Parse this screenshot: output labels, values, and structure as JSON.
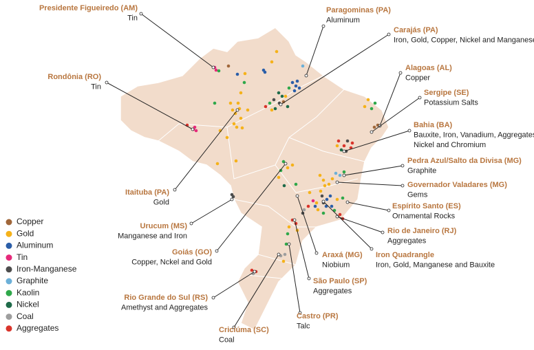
{
  "callouts": [
    {
      "name": "Presidente Figueiredo (AM)",
      "lines": [
        "Tin"
      ]
    },
    {
      "name": "Paragominas (PA)",
      "lines": [
        "Aluminum"
      ]
    },
    {
      "name": "Carajás (PA)",
      "lines": [
        "Iron, Gold, Copper, Nickel and Manganese"
      ]
    },
    {
      "name": "Rondônia (RO)",
      "lines": [
        "Tin"
      ]
    },
    {
      "name": "Alagoas (AL)",
      "lines": [
        "Copper"
      ]
    },
    {
      "name": "Sergipe (SE)",
      "lines": [
        "Potassium Salts"
      ]
    },
    {
      "name": "Bahia (BA)",
      "lines": [
        "Bauxite, Iron, Vanadium, Aggregates,",
        "Nickel and Chromium"
      ]
    },
    {
      "name": "Pedra Azul/Salto da Divisa (MG)",
      "lines": [
        "Graphite"
      ]
    },
    {
      "name": "Governador Valadares (MG)",
      "lines": [
        "Gems"
      ]
    },
    {
      "name": "Espírito Santo (ES)",
      "lines": [
        "Ornamental Rocks"
      ]
    },
    {
      "name": "Rio de Janeiro (RJ)",
      "lines": [
        "Aggregates"
      ]
    },
    {
      "name": "Iron Quadrangle",
      "lines": [
        "Iron, Gold, Manganese and Bauxite"
      ]
    },
    {
      "name": "Itaituba (PA)",
      "lines": [
        "Gold"
      ]
    },
    {
      "name": "Urucum (MS)",
      "lines": [
        "Manganese and Iron"
      ]
    },
    {
      "name": "Goiás (GO)",
      "lines": [
        "Copper, Nckel and Gold"
      ]
    },
    {
      "name": "Araxá (MG)",
      "lines": [
        "Niobium"
      ]
    },
    {
      "name": "São Paulo (SP)",
      "lines": [
        "Aggregates"
      ]
    },
    {
      "name": "Rio Grande do Sul (RS)",
      "lines": [
        "Amethyst and Aggregates"
      ]
    },
    {
      "name": "Castro (PR)",
      "lines": [
        "Talc"
      ]
    },
    {
      "name": "Criciúma (SC)",
      "lines": [
        "Coal"
      ]
    }
  ],
  "legend": [
    {
      "label": "Copper",
      "color": "#a0673a"
    },
    {
      "label": "Gold",
      "color": "#f5b21a"
    },
    {
      "label": "Aluminum",
      "color": "#2b5ea8"
    },
    {
      "label": "Tin",
      "color": "#e6297a"
    },
    {
      "label": "Iron-Manganese",
      "color": "#4d4d4d"
    },
    {
      "label": "Graphite",
      "color": "#6cb0d8"
    },
    {
      "label": "Kaolin",
      "color": "#2fa84a"
    },
    {
      "label": "Nickel",
      "color": "#1f6b4a"
    },
    {
      "label": "Coal",
      "color": "#9e9e9e"
    },
    {
      "label": "Aggregates",
      "color": "#d9342b"
    }
  ]
}
